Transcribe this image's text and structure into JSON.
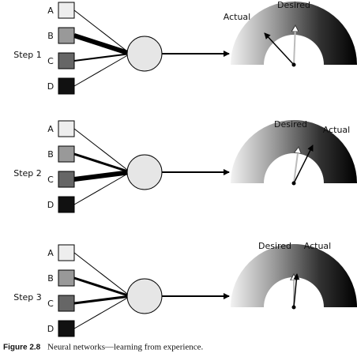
{
  "steps": [
    {
      "label": "Step 1",
      "inputs": [
        "A",
        "B",
        "C",
        "D"
      ],
      "actual": "Actual",
      "desired": "Desired"
    },
    {
      "label": "Step 2",
      "inputs": [
        "A",
        "B",
        "C",
        "D"
      ],
      "actual": "Actual",
      "desired": "Desired"
    },
    {
      "label": "Step 3",
      "inputs": [
        "A",
        "B",
        "C",
        "D"
      ],
      "actual": "Actual",
      "desired": "Desired"
    }
  ],
  "caption": {
    "label": "Figure 2.8",
    "text": "Neural networks—learning from experience."
  }
}
